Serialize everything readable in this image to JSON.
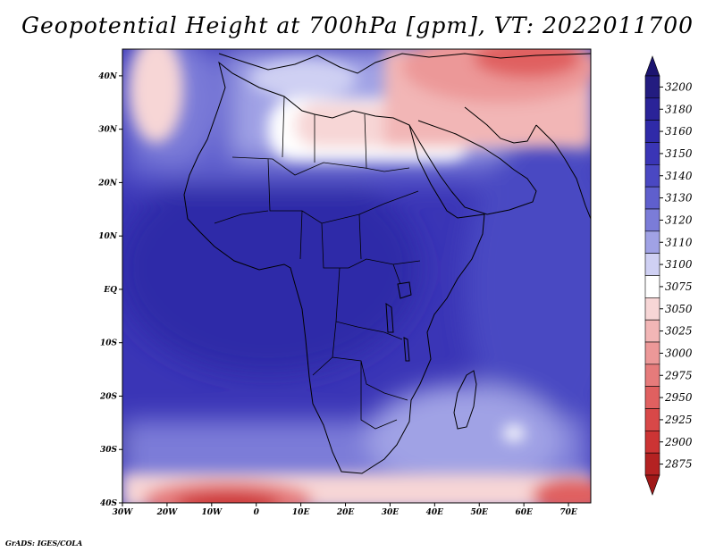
{
  "title": "Geopotential Height at 700hPa [gpm], VT: 2022011700",
  "credit": "GrADS: IGES/COLA",
  "map": {
    "variable": "Geopotential Height 700hPa",
    "units": "gpm",
    "valid_time": "2022011700",
    "lon_range": [
      -30,
      75
    ],
    "lat_range": [
      -40,
      45
    ]
  },
  "lat_labels": [
    {
      "value": 40,
      "text": "40N"
    },
    {
      "value": 30,
      "text": "30N"
    },
    {
      "value": 20,
      "text": "20N"
    },
    {
      "value": 10,
      "text": "10N"
    },
    {
      "value": 0,
      "text": "EQ"
    },
    {
      "value": -10,
      "text": "10S"
    },
    {
      "value": -20,
      "text": "20S"
    },
    {
      "value": -30,
      "text": "30S"
    },
    {
      "value": -40,
      "text": "40S"
    }
  ],
  "lon_labels": [
    {
      "value": -30,
      "text": "30W"
    },
    {
      "value": -20,
      "text": "20W"
    },
    {
      "value": -10,
      "text": "10W"
    },
    {
      "value": 0,
      "text": "0"
    },
    {
      "value": 10,
      "text": "10E"
    },
    {
      "value": 20,
      "text": "20E"
    },
    {
      "value": 30,
      "text": "30E"
    },
    {
      "value": 40,
      "text": "40E"
    },
    {
      "value": 50,
      "text": "50E"
    },
    {
      "value": 60,
      "text": "60E"
    },
    {
      "value": 70,
      "text": "70E"
    }
  ],
  "colorbar": {
    "levels": [
      {
        "label": "3200",
        "color": "#231c80"
      },
      {
        "label": "3180",
        "color": "#2a2398"
      },
      {
        "label": "3160",
        "color": "#2f2aa8"
      },
      {
        "label": "3150",
        "color": "#3a35b6"
      },
      {
        "label": "3140",
        "color": "#4a48c2"
      },
      {
        "label": "3130",
        "color": "#5f5fcd"
      },
      {
        "label": "3120",
        "color": "#7b7cd8"
      },
      {
        "label": "3110",
        "color": "#a0a2e5"
      },
      {
        "label": "3100",
        "color": "#cfd0f3"
      },
      {
        "label": "3075",
        "color": "#ffffff"
      },
      {
        "label": "3050",
        "color": "#f7d6d6"
      },
      {
        "label": "3025",
        "color": "#f2b6b6"
      },
      {
        "label": "3000",
        "color": "#ec9898"
      },
      {
        "label": "2975",
        "color": "#e67b7b"
      },
      {
        "label": "2950",
        "color": "#e06060"
      },
      {
        "label": "2925",
        "color": "#d84848"
      },
      {
        "label": "2900",
        "color": "#cc3434"
      },
      {
        "label": "2875",
        "color": "#b42222"
      }
    ],
    "top_arrow_color": "#1c1470",
    "bottom_arrow_color": "#a01818"
  },
  "colors": {
    "field_base": "#3a35b6",
    "coastline": "#000000"
  }
}
